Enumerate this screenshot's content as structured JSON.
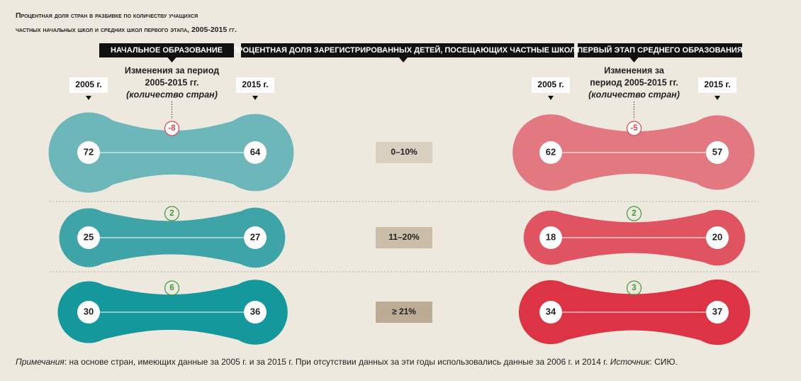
{
  "title": [
    "Процентная доля стран в разбивке по количеству учащихся",
    "частных начальных школ и средних школ первого этапа, 2005-2015 гг."
  ],
  "center_header": "ПРОЦЕНТНАЯ ДОЛЯ ЗАРЕГИСТРИРОВАННЫХ ДЕТЕЙ, ПОСЕЩАЮЩИХ ЧАСТНЫЕ ШКОЛЫ",
  "bands": [
    "0–10%",
    "11–20%",
    "≥ 21%"
  ],
  "panels": [
    {
      "header": "НАЧАЛЬНОЕ ОБРАЗОВАНИЕ",
      "year_start": "2005 г.",
      "year_end": "2015 г.",
      "change_label": [
        "Изменения за период",
        "2005-2015 гг.",
        "(количество стран)"
      ],
      "colors": [
        "#6db6b9",
        "#3ea4a7",
        "#14989b"
      ],
      "rows": [
        {
          "start": 72,
          "end": 64,
          "change": -8
        },
        {
          "start": 25,
          "end": 27,
          "change": 2
        },
        {
          "start": 30,
          "end": 36,
          "change": 6
        }
      ]
    },
    {
      "header": "ПЕРВЫЙ ЭТАП СРЕДНЕГО ОБРАЗОВАНИЯ",
      "year_start": "2005 г.",
      "year_end": "2015 г.",
      "change_label": [
        "Изменения за",
        "период 2005-2015 гг.",
        "(количество стран)"
      ],
      "colors": [
        "#e27880",
        "#e05462",
        "#dc3444"
      ],
      "rows": [
        {
          "start": 62,
          "end": 57,
          "change": -5
        },
        {
          "start": 18,
          "end": 20,
          "change": 2
        },
        {
          "start": 34,
          "end": 37,
          "change": 3
        }
      ]
    }
  ],
  "note": {
    "label": "Примечания",
    "text": ": на основе стран, имеющих данные за 2005 г. и за 2015 г. При отсутствии данных за эти годы использовались данные за 2006 г. и 2014 г. ",
    "source_label": "Источник",
    "source_text": ": СИЮ."
  }
}
